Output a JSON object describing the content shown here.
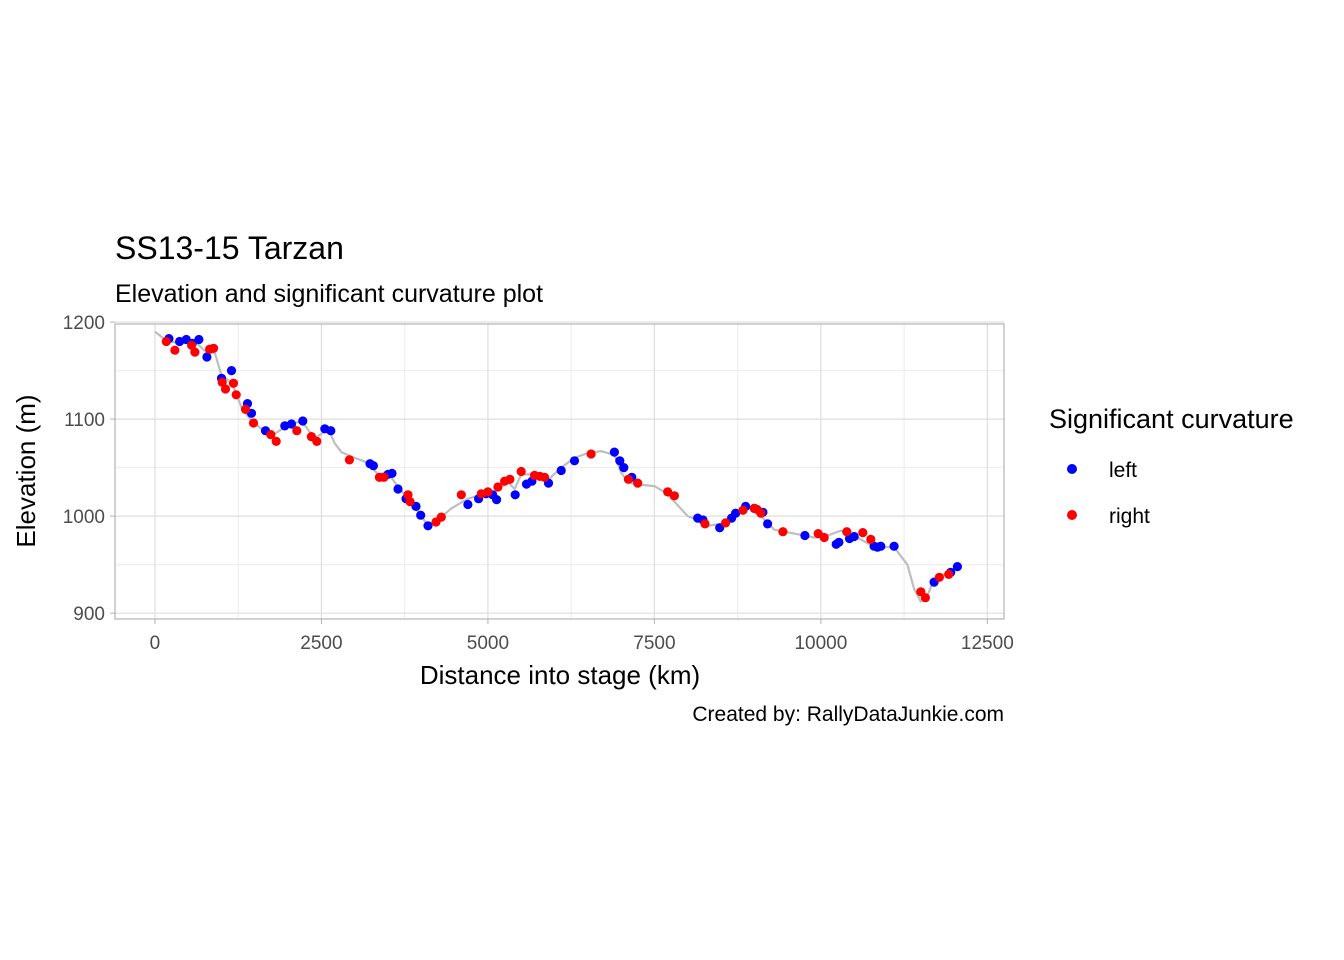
{
  "chart_data": {
    "type": "line",
    "title": "SS13-15 Tarzan",
    "subtitle": "Elevation and significant curvature plot",
    "xlabel": "Distance into stage (km)",
    "ylabel": "Elevation (m)",
    "caption": "Created by: RallyDataJunkie.com",
    "xlim": [
      -600,
      12750
    ],
    "ylim": [
      894,
      1198
    ],
    "x_ticks": [
      0,
      2500,
      5000,
      7500,
      10000,
      12500
    ],
    "x_tick_labels": [
      "0",
      "2500",
      "5000",
      "7500",
      "10000",
      "12500"
    ],
    "y_ticks": [
      900,
      1000,
      1100,
      1200
    ],
    "y_tick_labels": [
      "900",
      "1000",
      "1100",
      "1200"
    ],
    "grid": true,
    "legend": {
      "title": "Significant curvature",
      "position": "right",
      "entries": [
        {
          "label": "left",
          "color": "#0000ff"
        },
        {
          "label": "right",
          "color": "#ff0000"
        }
      ]
    },
    "elevation_line": {
      "color": "#bebebe",
      "x": [
        0,
        150,
        300,
        450,
        600,
        750,
        900,
        1000,
        1100,
        1200,
        1300,
        1450,
        1600,
        1800,
        2000,
        2200,
        2400,
        2600,
        2700,
        2800,
        3000,
        3200,
        3350,
        3500,
        3650,
        3800,
        3950,
        4100,
        4250,
        4450,
        4700,
        4900,
        5100,
        5300,
        5400,
        5500,
        5700,
        5900,
        6100,
        6300,
        6500,
        6700,
        6900,
        7000,
        7100,
        7200,
        7500,
        7650,
        7800,
        8000,
        8150,
        8300,
        8500,
        8700,
        8900,
        9100,
        9300,
        9600,
        9900,
        10100,
        10300,
        10500,
        10700,
        10900,
        11100,
        11300,
        11400,
        11500,
        11600,
        11700,
        11850,
        12000,
        12100
      ],
      "y": [
        1190,
        1182,
        1179,
        1181,
        1180,
        1170,
        1168,
        1145,
        1140,
        1130,
        1112,
        1098,
        1090,
        1085,
        1094,
        1098,
        1080,
        1090,
        1075,
        1066,
        1060,
        1055,
        1043,
        1045,
        1030,
        1018,
        1005,
        990,
        996,
        1008,
        1018,
        1022,
        1025,
        1035,
        1028,
        1043,
        1043,
        1037,
        1050,
        1060,
        1065,
        1067,
        1063,
        1045,
        1035,
        1033,
        1031,
        1025,
        1015,
        1000,
        996,
        990,
        992,
        1000,
        1010,
        1000,
        986,
        982,
        978,
        980,
        985,
        980,
        972,
        968,
        968,
        950,
        925,
        912,
        918,
        935,
        940,
        945,
        950
      ]
    },
    "series": [
      {
        "name": "left",
        "color": "#0000ff",
        "x": [
          210,
          370,
          470,
          560,
          660,
          780,
          1000,
          1150,
          1390,
          1450,
          1660,
          1950,
          2050,
          2220,
          2550,
          2640,
          3230,
          3280,
          3500,
          3560,
          3650,
          3770,
          3920,
          3990,
          4100,
          4700,
          4860,
          4970,
          5070,
          5130,
          5410,
          5580,
          5660,
          5910,
          6100,
          6300,
          6900,
          6980,
          7040,
          7160,
          8150,
          8230,
          8480,
          8660,
          8720,
          8870,
          9000,
          9130,
          9200,
          9760,
          10230,
          10270,
          10430,
          10500,
          10800,
          10850,
          10900,
          11100,
          11700,
          11950,
          12050
        ],
        "y": [
          1183,
          1180,
          1182,
          1178,
          1182,
          1164,
          1142,
          1150,
          1116,
          1106,
          1088,
          1093,
          1095,
          1098,
          1090,
          1088,
          1054,
          1052,
          1043,
          1044,
          1028,
          1018,
          1010,
          1001,
          990,
          1012,
          1018,
          1023,
          1022,
          1017,
          1022,
          1033,
          1036,
          1034,
          1047,
          1057,
          1066,
          1057,
          1050,
          1040,
          998,
          996,
          988,
          998,
          1003,
          1010,
          1008,
          1004,
          992,
          980,
          971,
          973,
          977,
          979,
          969,
          968,
          969,
          969,
          932,
          942,
          948
        ]
      },
      {
        "name": "right",
        "color": "#ff0000",
        "x": [
          170,
          300,
          550,
          600,
          820,
          880,
          1010,
          1060,
          1180,
          1220,
          1360,
          1480,
          1740,
          1820,
          2130,
          2350,
          2430,
          2920,
          3370,
          3440,
          3800,
          3830,
          4220,
          4300,
          4600,
          4900,
          5000,
          5150,
          5250,
          5330,
          5500,
          5700,
          5780,
          5850,
          6550,
          7110,
          7250,
          7700,
          7800,
          8260,
          8570,
          8830,
          9000,
          9040,
          9100,
          9430,
          9960,
          10050,
          10390,
          10630,
          10750,
          11500,
          11570,
          11780,
          11920
        ],
        "y": [
          1180,
          1171,
          1176,
          1169,
          1172,
          1173,
          1138,
          1131,
          1137,
          1125,
          1110,
          1096,
          1084,
          1077,
          1088,
          1082,
          1077,
          1058,
          1040,
          1040,
          1022,
          1015,
          994,
          999,
          1022,
          1023,
          1025,
          1030,
          1036,
          1038,
          1046,
          1042,
          1041,
          1040,
          1064,
          1038,
          1034,
          1025,
          1021,
          992,
          993,
          1006,
          1008,
          1007,
          1003,
          984,
          982,
          978,
          984,
          983,
          976,
          922,
          916,
          937,
          940
        ]
      }
    ]
  }
}
